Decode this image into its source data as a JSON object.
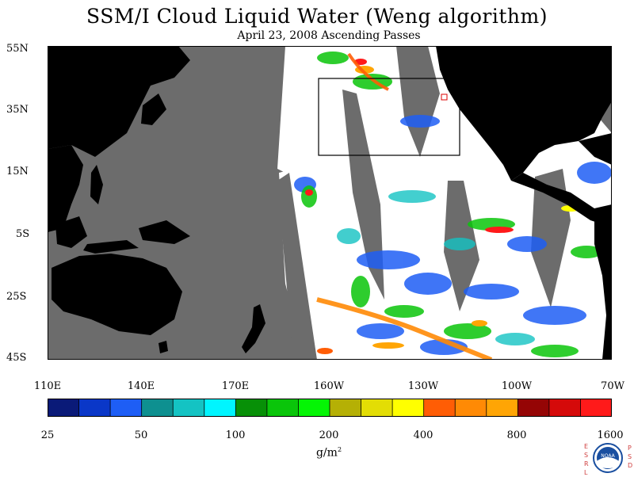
{
  "title": "SSM/I Cloud Liquid Water (Weng algorithm)",
  "subtitle": "April 23, 2008  Ascending Passes",
  "latitude_labels": [
    "55N",
    "35N",
    "15N",
    "5S",
    "25S",
    "45S"
  ],
  "longitude_labels": [
    "110E",
    "140E",
    "170E",
    "160W",
    "130W",
    "100W",
    "70W"
  ],
  "colorbar": {
    "labels": [
      "25",
      "50",
      "100",
      "200",
      "400",
      "800",
      "1600"
    ],
    "units_base": "g/m",
    "units_exp": "2",
    "colors": [
      "#0a1a78",
      "#0a37c8",
      "#1e5ef5",
      "#0e9090",
      "#14c3c3",
      "#00f5ff",
      "#079007",
      "#0ac50a",
      "#05f505",
      "#b5b005",
      "#e3dd05",
      "#ffff00",
      "#ff5d05",
      "#ff8a05",
      "#ffa505",
      "#950505",
      "#d50a0a",
      "#ff1a1a"
    ]
  },
  "logo": {
    "left_letters": [
      "E",
      "S",
      "R",
      "L"
    ],
    "right_letters": [
      "P",
      "S",
      "D"
    ],
    "badge_text": "NOAA"
  },
  "colors": {
    "land": "#000000",
    "no_data": "#6c6c6c",
    "clear": "#ffffff"
  }
}
